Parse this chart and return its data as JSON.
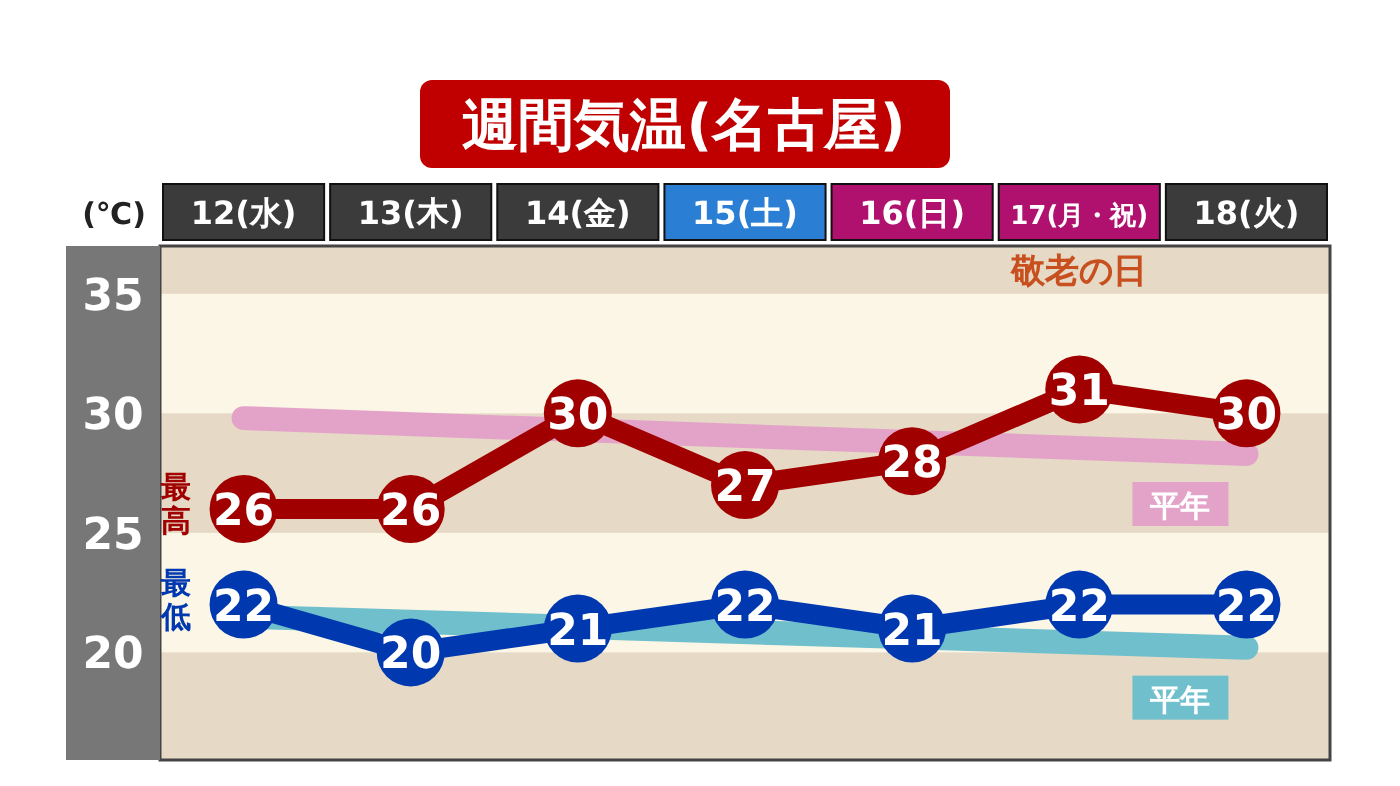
{
  "chart_data": {
    "type": "line",
    "title": "週間気温(名古屋)",
    "ylabel": "(℃)",
    "categories": [
      "12(水)",
      "13(木)",
      "14(金)",
      "15(土)",
      "16(日)",
      "17(月・祝)",
      "18(火)"
    ],
    "series": [
      {
        "name": "平年",
        "color": "#e3a3c9",
        "values": [
          29.8,
          null,
          null,
          null,
          null,
          null,
          28.3
        ],
        "data_labels": false,
        "marker": "none"
      },
      {
        "name": "平年",
        "color": "#6fbfcc",
        "values": [
          21.5,
          null,
          null,
          null,
          null,
          null,
          20.2
        ],
        "data_labels": false,
        "marker": "none"
      },
      {
        "name": "最高",
        "color": "#a00000",
        "values": [
          26,
          26,
          30,
          27,
          28,
          31,
          30
        ]
      },
      {
        "name": "最低",
        "color": "#0038b0",
        "values": [
          22,
          20,
          21,
          22,
          21,
          22,
          22
        ]
      }
    ],
    "ylim": [
      15.5,
      37
    ],
    "yticks": [
      20,
      25,
      30,
      35
    ],
    "marker": "circle",
    "data_labels": true,
    "annotations": [
      "敬老の日"
    ]
  }
}
